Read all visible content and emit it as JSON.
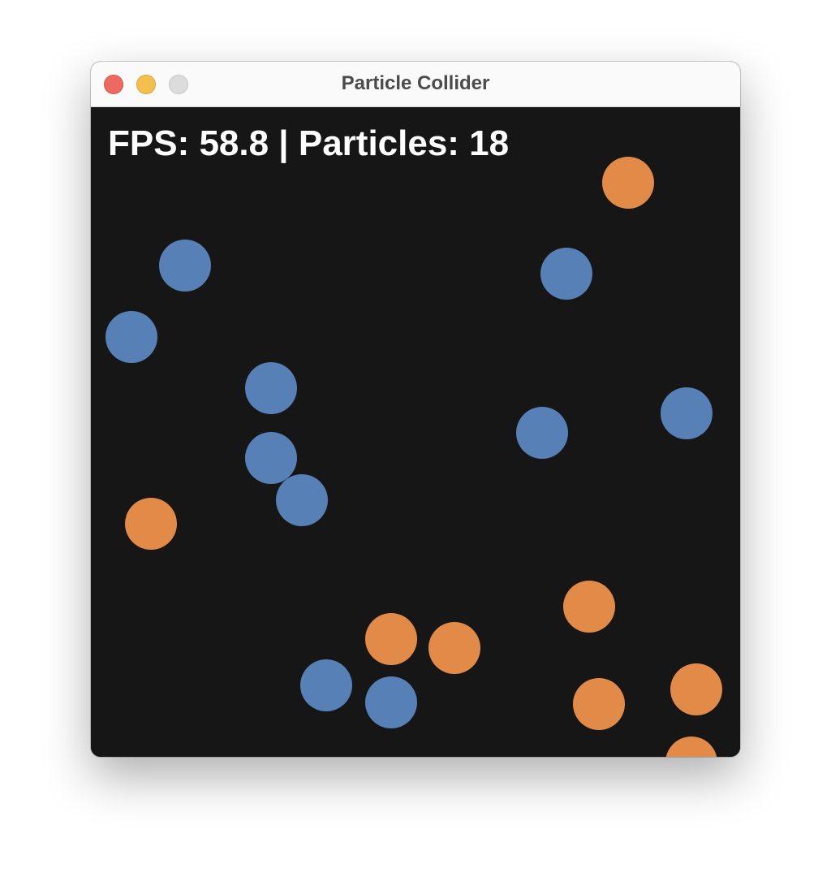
{
  "window": {
    "title": "Particle Collider",
    "controls": {
      "close_color": "#ed6a5e",
      "minimize_color": "#f5bf4f",
      "zoom_color": "#dcdcdc"
    }
  },
  "simulation": {
    "background_color": "#161616",
    "hud_text": "FPS: 58.8 | Particles: 18",
    "fps": 58.8,
    "particle_count": 18,
    "particle_types": {
      "blue": "#5780b6",
      "orange": "#e28b48"
    }
  }
}
